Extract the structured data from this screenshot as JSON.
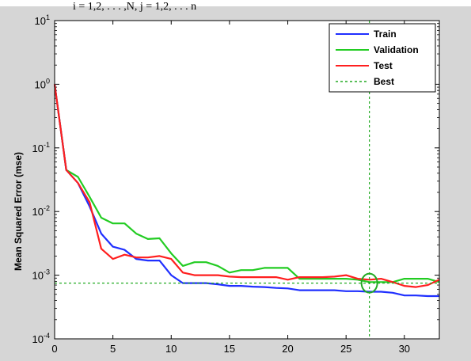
{
  "header_text": "i = 1,2, . . . ,N, j = 1,2, . . . n",
  "colors": {
    "frame": "#d6d6d6",
    "axes_bg": "#ffffff",
    "train": "#1f2fff",
    "validation": "#22cc22",
    "test": "#ff1f1f",
    "best": "#22aa22"
  },
  "chart_data": {
    "type": "line",
    "title": "",
    "xlabel": "",
    "ylabel": "Mean Squared Error  (mse)",
    "xlim": [
      0,
      33
    ],
    "ylim": [
      0.0001,
      10
    ],
    "yscale": "log",
    "xticks": [
      0,
      5,
      10,
      15,
      20,
      25,
      30
    ],
    "xtick_labels": [
      "0",
      "5",
      "10",
      "15",
      "20",
      "25",
      "30"
    ],
    "yticks": [
      0.0001,
      0.001,
      0.01,
      0.1,
      1,
      10
    ],
    "ytick_labels": [
      {
        "base": "10",
        "exp": "-4"
      },
      {
        "base": "10",
        "exp": "-3"
      },
      {
        "base": "10",
        "exp": "-2"
      },
      {
        "base": "10",
        "exp": "-1"
      },
      {
        "base": "10",
        "exp": "0"
      },
      {
        "base": "10",
        "exp": "1"
      }
    ],
    "grid": false,
    "legend": {
      "position": "top-right",
      "entries": [
        {
          "label": "Train",
          "color": "#1f2fff",
          "style": "solid"
        },
        {
          "label": "Validation",
          "color": "#22cc22",
          "style": "solid"
        },
        {
          "label": "Test",
          "color": "#ff1f1f",
          "style": "solid"
        },
        {
          "label": "Best",
          "color": "#22aa22",
          "style": "dotted"
        }
      ]
    },
    "x": [
      0,
      1,
      2,
      3,
      4,
      5,
      6,
      7,
      8,
      9,
      10,
      11,
      12,
      13,
      14,
      15,
      16,
      17,
      18,
      19,
      20,
      21,
      22,
      23,
      24,
      25,
      26,
      27,
      28,
      29,
      30,
      31,
      32,
      33
    ],
    "series": [
      {
        "name": "Train",
        "color": "#1f2fff",
        "values": [
          1.0,
          0.045,
          0.028,
          0.012,
          0.0045,
          0.0028,
          0.0025,
          0.0018,
          0.0017,
          0.0017,
          0.001,
          0.00075,
          0.00075,
          0.00075,
          0.00072,
          0.00068,
          0.00068,
          0.00066,
          0.00065,
          0.00063,
          0.00062,
          0.00058,
          0.00058,
          0.00058,
          0.00058,
          0.00056,
          0.00056,
          0.00055,
          0.00055,
          0.00053,
          0.00048,
          0.00048,
          0.00047,
          0.00047
        ]
      },
      {
        "name": "Validation",
        "color": "#22cc22",
        "values": [
          1.0,
          0.045,
          0.035,
          0.017,
          0.008,
          0.0065,
          0.0065,
          0.0045,
          0.0037,
          0.0038,
          0.0022,
          0.0014,
          0.0016,
          0.0016,
          0.0014,
          0.0011,
          0.0012,
          0.0012,
          0.0013,
          0.0013,
          0.0013,
          0.00088,
          0.00088,
          0.00088,
          0.00088,
          0.00088,
          0.00085,
          0.00078,
          0.00078,
          0.00078,
          0.00088,
          0.00088,
          0.00088,
          0.00078
        ]
      },
      {
        "name": "Test",
        "color": "#ff1f1f",
        "values": [
          1.0,
          0.045,
          0.028,
          0.014,
          0.0026,
          0.0018,
          0.0021,
          0.0019,
          0.0019,
          0.002,
          0.0018,
          0.0011,
          0.001,
          0.001,
          0.001,
          0.00095,
          0.00093,
          0.00093,
          0.00093,
          0.00093,
          0.00085,
          0.00093,
          0.00093,
          0.00093,
          0.00095,
          0.001,
          0.00088,
          0.00085,
          0.00088,
          0.00078,
          0.00068,
          0.00065,
          0.0007,
          0.00085
        ]
      }
    ],
    "best": {
      "epoch": 27,
      "value": 0.00075,
      "color": "#22aa22"
    }
  }
}
